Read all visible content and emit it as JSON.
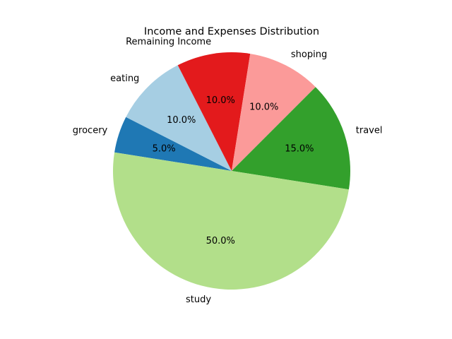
{
  "chart_data": {
    "type": "pie",
    "title": "Income and Expenses Distribution",
    "categories": [
      "grocery",
      "eating",
      "Remaining Income",
      "shoping",
      "travel",
      "study"
    ],
    "values": [
      5.0,
      10.0,
      10.0,
      10.0,
      15.0,
      50.0
    ],
    "percent_labels": [
      "5.0%",
      "10.0%",
      "10.0%",
      "10.0%",
      "15.0%",
      "50.0%"
    ],
    "colors": [
      "#1f78b4",
      "#a6cee3",
      "#e31a1c",
      "#fb9a99",
      "#33a02c",
      "#b2df8a"
    ],
    "start_angle_deg": 171,
    "direction": "clockwise",
    "legend": "none",
    "grid": false
  }
}
